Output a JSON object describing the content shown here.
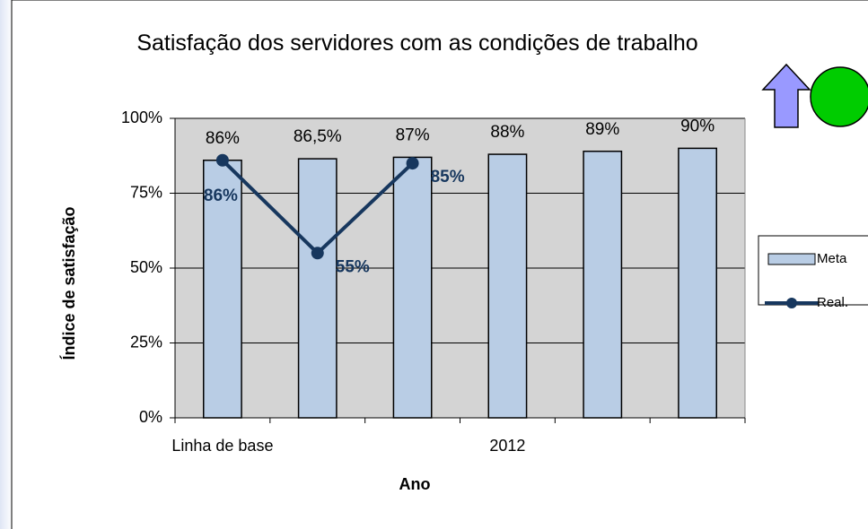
{
  "chart_data": {
    "type": "bar_line",
    "title": "Satisfação dos servidores com as condições de trabalho",
    "y_label": "Índice de satisfação",
    "x_label": "Ano",
    "categories": [
      "Linha de base",
      null,
      null,
      "2012",
      null,
      null
    ],
    "series": [
      {
        "name": "Meta",
        "type": "bar",
        "color": "#b9cde5",
        "values": [
          86,
          86.5,
          87,
          88,
          89,
          90
        ],
        "value_labels": [
          "86%",
          "86,5%",
          "87%",
          "88%",
          "89%",
          "90%"
        ]
      },
      {
        "name": "Real.",
        "type": "line",
        "color": "#17375e",
        "values": [
          86,
          55,
          85,
          null,
          null,
          null
        ],
        "value_labels": [
          "86%",
          "55%",
          "85%",
          null,
          null,
          null
        ]
      }
    ],
    "ylim": [
      0,
      100
    ],
    "yticks": [
      {
        "value": 0,
        "label": "0%"
      },
      {
        "value": 25,
        "label": "25%"
      },
      {
        "value": 50,
        "label": "50%"
      },
      {
        "value": 75,
        "label": "75%"
      },
      {
        "value": 100,
        "label": "100%"
      }
    ],
    "grid": true,
    "legend": "right"
  }
}
